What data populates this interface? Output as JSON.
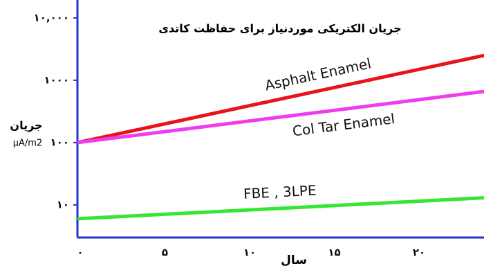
{
  "chart_data": {
    "type": "line",
    "title": "جریان الکتریکی موردنیاز برای حفاظت کاتدی",
    "y_label": "جریان",
    "y_unit": "μA/m2",
    "x_label": "سال",
    "log_y": true,
    "x": [
      0,
      24
    ],
    "xlim": [
      0,
      24
    ],
    "ylim": [
      3,
      15000
    ],
    "xticks": [
      {
        "value": 0,
        "label": "۰"
      },
      {
        "value": 5,
        "label": "۵"
      },
      {
        "value": 10,
        "label": "۱۰"
      },
      {
        "value": 15,
        "label": "۱۵"
      },
      {
        "value": 20,
        "label": "۲۰"
      }
    ],
    "yticks": [
      {
        "value": 10,
        "label": "۱۰"
      },
      {
        "value": 100,
        "label": "۱۰۰"
      },
      {
        "value": 1000,
        "label": "۱۰۰۰"
      },
      {
        "value": 10000,
        "label": "۱۰,۰۰۰"
      }
    ],
    "series": [
      {
        "name": "Asphalt Enamel",
        "color": "#e8141b",
        "values": [
          100,
          2500
        ]
      },
      {
        "name": "Col Tar Enamel",
        "color": "#ee3ded",
        "values": [
          100,
          660
        ]
      },
      {
        "name": "FBE , 3LPE",
        "color": "#35e635",
        "values": [
          6,
          13
        ]
      }
    ]
  }
}
